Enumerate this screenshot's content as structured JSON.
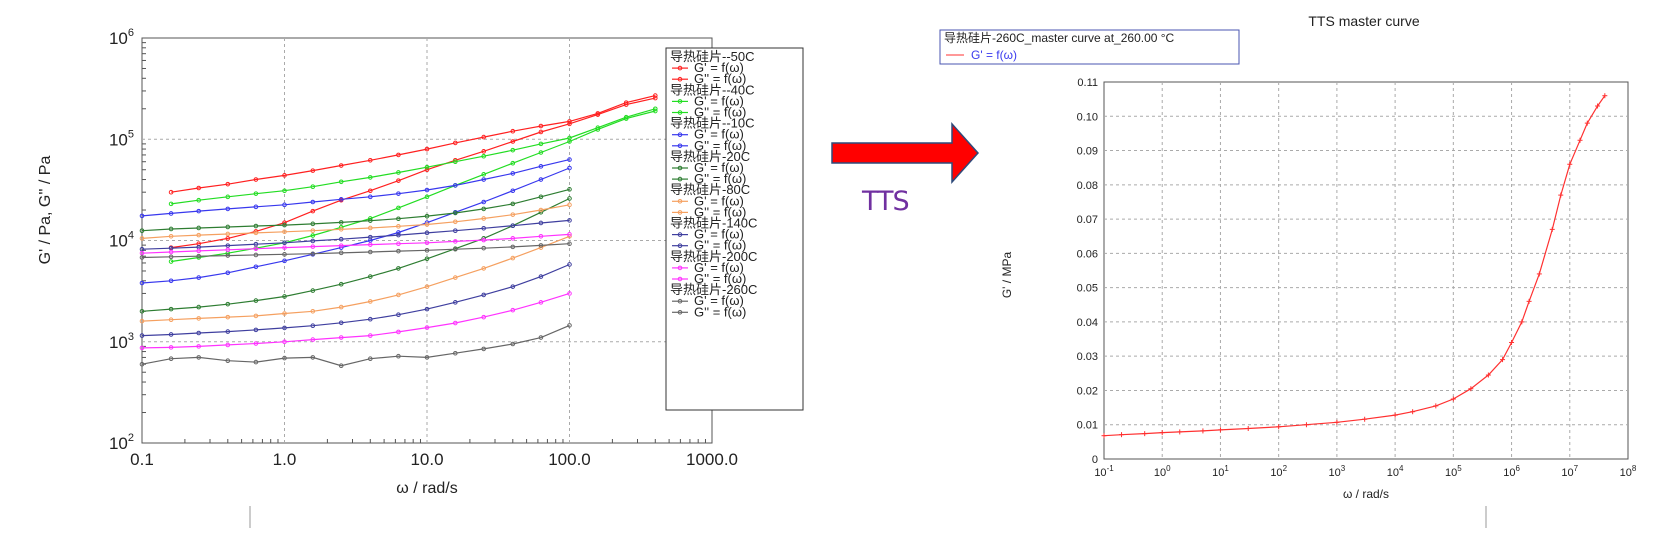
{
  "arrow_label": "TTS",
  "colors": {
    "arrow": "#ff0000",
    "arrow_border": "#2e4a7a",
    "arrow_label": "#7030a0"
  },
  "left_chart": {
    "type": "line",
    "xlabel": "ω / rad/s",
    "ylabel": "G' / Pa, G'' / Pa",
    "x_scale": "log",
    "y_scale": "log",
    "xlim": [
      0.1,
      1000
    ],
    "ylim": [
      100,
      1000000
    ],
    "x_ticks": [
      "0.1",
      "1.0",
      "10.0",
      "100.0",
      "1000.0"
    ],
    "y_tick_exponents": [
      "2",
      "3",
      "4",
      "5",
      "6"
    ],
    "y_tick_base": "10",
    "grid": true,
    "legend_placement": "right",
    "legend_groups": [
      {
        "title": "导热硅片--50C",
        "color": "#ff2020",
        "entries": [
          "G' = f(ω)",
          "G'' = f(ω)"
        ],
        "G_prime": {
          "x": [
            0.16,
            0.25,
            0.4,
            0.63,
            1,
            1.58,
            2.5,
            4,
            6.3,
            10,
            15.8,
            25,
            40,
            63,
            100,
            158,
            250,
            400
          ],
          "y": [
            8500,
            9300,
            10500,
            12300,
            15000,
            19500,
            25000,
            31000,
            39000,
            50000,
            62000,
            76000,
            95000,
            118000,
            142000,
            175000,
            220000,
            255000
          ]
        },
        "G_double_prime": {
          "x": [
            0.16,
            0.25,
            0.4,
            0.63,
            1,
            1.58,
            2.5,
            4,
            6.3,
            10,
            15.8,
            25,
            40,
            63,
            100,
            158,
            250,
            400
          ],
          "y": [
            30000,
            33000,
            36000,
            40000,
            44000,
            49000,
            55000,
            62000,
            70000,
            80000,
            92000,
            105000,
            120000,
            135000,
            150000,
            180000,
            230000,
            270000
          ]
        }
      },
      {
        "title": "导热硅片--40C",
        "color": "#22dd22",
        "entries": [
          "G' = f(ω)",
          "G'' = f(ω)"
        ],
        "G_prime": {
          "x": [
            0.16,
            0.25,
            0.4,
            0.63,
            1,
            1.58,
            2.5,
            4,
            6.3,
            10,
            15.8,
            25,
            40,
            63,
            100,
            158,
            250,
            400
          ],
          "y": [
            6200,
            6800,
            7500,
            8400,
            9500,
            11200,
            13500,
            16500,
            21000,
            27000,
            35000,
            45000,
            58000,
            74000,
            95000,
            125000,
            160000,
            190000
          ]
        },
        "G_double_prime": {
          "x": [
            0.16,
            0.25,
            0.4,
            0.63,
            1,
            1.58,
            2.5,
            4,
            6.3,
            10,
            15.8,
            25,
            40,
            63,
            100,
            158,
            250,
            400
          ],
          "y": [
            23000,
            25000,
            27000,
            29000,
            31000,
            34000,
            38000,
            42000,
            47000,
            53000,
            60000,
            68000,
            78000,
            90000,
            103000,
            130000,
            165000,
            200000
          ]
        }
      },
      {
        "title": "导热硅片--10C",
        "color": "#3838ee",
        "entries": [
          "G' = f(ω)",
          "G'' = f(ω)"
        ],
        "G_prime": {
          "x": [
            0.1,
            0.16,
            0.25,
            0.4,
            0.63,
            1,
            1.58,
            2.5,
            4,
            6.3,
            10,
            15.8,
            25,
            40,
            63,
            100
          ],
          "y": [
            3800,
            4000,
            4300,
            4800,
            5500,
            6300,
            7300,
            8500,
            10000,
            12000,
            15000,
            19000,
            24000,
            31000,
            40000,
            52000
          ]
        },
        "G_double_prime": {
          "x": [
            0.1,
            0.16,
            0.25,
            0.4,
            0.63,
            1,
            1.58,
            2.5,
            4,
            6.3,
            10,
            15.8,
            25,
            40,
            63,
            100
          ],
          "y": [
            17500,
            18500,
            19500,
            20500,
            21500,
            22500,
            24000,
            25500,
            27000,
            29000,
            31500,
            35000,
            40000,
            46000,
            54000,
            63000
          ]
        }
      },
      {
        "title": "导热硅片-20C",
        "color": "#2e7d32",
        "entries": [
          "G' = f(ω)",
          "G'' = f(ω)"
        ],
        "G_prime": {
          "x": [
            0.1,
            0.16,
            0.25,
            0.4,
            0.63,
            1,
            1.58,
            2.5,
            4,
            6.3,
            10,
            15.8,
            25,
            40,
            63,
            100
          ],
          "y": [
            2000,
            2100,
            2200,
            2350,
            2550,
            2800,
            3200,
            3700,
            4400,
            5300,
            6600,
            8300,
            10500,
            14000,
            19000,
            26000
          ]
        },
        "G_double_prime": {
          "x": [
            0.1,
            0.16,
            0.25,
            0.4,
            0.63,
            1,
            1.58,
            2.5,
            4,
            6.3,
            10,
            15.8,
            25,
            40,
            63,
            100
          ],
          "y": [
            12500,
            13000,
            13300,
            13600,
            13900,
            14200,
            14600,
            15100,
            15700,
            16400,
            17400,
            18700,
            20500,
            23000,
            27000,
            32000
          ]
        }
      },
      {
        "title": "导热硅片-80C",
        "color": "#f5a060",
        "entries": [
          "G' = f(ω)",
          "G'' = f(ω)"
        ],
        "G_prime": {
          "x": [
            0.1,
            0.16,
            0.25,
            0.4,
            0.63,
            1,
            1.58,
            2.5,
            4,
            6.3,
            10,
            15.8,
            25,
            40,
            63,
            100
          ],
          "y": [
            1600,
            1650,
            1700,
            1750,
            1800,
            1900,
            2000,
            2200,
            2500,
            2900,
            3500,
            4300,
            5300,
            6700,
            8500,
            11000
          ]
        },
        "G_double_prime": {
          "x": [
            0.1,
            0.16,
            0.25,
            0.4,
            0.63,
            1,
            1.58,
            2.5,
            4,
            6.3,
            10,
            15.8,
            25,
            40,
            63,
            100
          ],
          "y": [
            10500,
            11000,
            11300,
            11600,
            11900,
            12200,
            12500,
            12900,
            13300,
            13800,
            14400,
            15300,
            16500,
            18000,
            20000,
            22500
          ]
        }
      },
      {
        "title": "导热硅片-140C",
        "color": "#3f3f9f",
        "entries": [
          "G' = f(ω)",
          "G'' = f(ω)"
        ],
        "G_prime": {
          "x": [
            0.1,
            0.16,
            0.25,
            0.4,
            0.63,
            1,
            1.58,
            2.5,
            4,
            6.3,
            10,
            15.8,
            25,
            40,
            63,
            100
          ],
          "y": [
            1150,
            1180,
            1220,
            1260,
            1310,
            1370,
            1440,
            1540,
            1670,
            1850,
            2100,
            2450,
            2900,
            3500,
            4400,
            5800
          ]
        },
        "G_double_prime": {
          "x": [
            0.1,
            0.16,
            0.25,
            0.4,
            0.63,
            1,
            1.58,
            2.5,
            4,
            6.3,
            10,
            15.8,
            25,
            40,
            63,
            100
          ],
          "y": [
            8200,
            8400,
            8600,
            8900,
            9200,
            9500,
            9900,
            10300,
            10800,
            11300,
            11900,
            12500,
            13200,
            14000,
            14900,
            15800
          ]
        }
      },
      {
        "title": "导热硅片-200C",
        "color": "#ff33ff",
        "entries": [
          "G' = f(ω)",
          "G'' = f(ω)"
        ],
        "G_prime": {
          "x": [
            0.1,
            0.16,
            0.25,
            0.4,
            0.63,
            1,
            1.58,
            2.5,
            4,
            6.3,
            10,
            15.8,
            25,
            40,
            63,
            100
          ],
          "y": [
            870,
            880,
            900,
            930,
            960,
            1000,
            1050,
            1100,
            1150,
            1250,
            1380,
            1530,
            1750,
            2050,
            2450,
            3000
          ]
        },
        "G_double_prime": {
          "x": [
            0.1,
            0.16,
            0.25,
            0.4,
            0.63,
            1,
            1.58,
            2.5,
            4,
            6.3,
            10,
            15.8,
            25,
            40,
            63,
            100
          ],
          "y": [
            7500,
            7700,
            7900,
            8100,
            8300,
            8500,
            8700,
            8900,
            9100,
            9300,
            9500,
            9800,
            10100,
            10500,
            11000,
            11500
          ]
        }
      },
      {
        "title": "导热硅片-260C",
        "color": "#666666",
        "entries": [
          "G' = f(ω)",
          "G'' = f(ω)"
        ],
        "G_prime": {
          "x": [
            0.1,
            0.16,
            0.25,
            0.4,
            0.63,
            1,
            1.58,
            2.5,
            4,
            6.3,
            10,
            15.8,
            25,
            40,
            63,
            100
          ],
          "y": [
            600,
            680,
            700,
            650,
            630,
            690,
            700,
            580,
            680,
            720,
            700,
            770,
            850,
            950,
            1100,
            1450
          ]
        },
        "G_double_prime": {
          "x": [
            0.1,
            0.16,
            0.25,
            0.4,
            0.63,
            1,
            1.58,
            2.5,
            4,
            6.3,
            10,
            15.8,
            25,
            40,
            63,
            100
          ],
          "y": [
            6800,
            6900,
            7000,
            7100,
            7200,
            7300,
            7400,
            7550,
            7700,
            7850,
            8000,
            8200,
            8400,
            8650,
            8950,
            9300
          ]
        }
      }
    ]
  },
  "right_chart": {
    "type": "line",
    "title": "TTS master curve",
    "legend_title": "导热硅片-260C_master curve at_260.00 °C",
    "legend_entry": "G' = f(ω)",
    "xlabel": "ω / rad/s",
    "ylabel": "G' / MPa",
    "x_scale": "log",
    "xlim": [
      0.1,
      100000000
    ],
    "ylim": [
      0,
      0.11
    ],
    "x_tick_base": "10",
    "x_tick_exponents": [
      "-1",
      "0",
      "1",
      "2",
      "3",
      "4",
      "5",
      "6",
      "7",
      "8"
    ],
    "y_ticks": [
      "0",
      "0.01",
      "0.02",
      "0.03",
      "0.04",
      "0.05",
      "0.06",
      "0.07",
      "0.08",
      "0.09",
      "0.10",
      "0.11"
    ],
    "grid": true,
    "color": "#ff3030",
    "series": [
      {
        "x": [
          0.1,
          0.2,
          0.5,
          1,
          2,
          5,
          10,
          30,
          100,
          300,
          1000,
          3000,
          10000,
          20000,
          50000,
          100000,
          200000,
          400000,
          700000,
          1000000,
          1500000,
          2000000,
          3000000,
          5000000,
          7000000,
          10000000,
          15000000,
          20000000,
          30000000,
          40000000
        ],
        "y": [
          0.0068,
          0.0071,
          0.0074,
          0.0077,
          0.0079,
          0.0082,
          0.0085,
          0.0089,
          0.0094,
          0.01,
          0.0107,
          0.0116,
          0.0128,
          0.0138,
          0.0155,
          0.0175,
          0.0205,
          0.0245,
          0.029,
          0.034,
          0.04,
          0.046,
          0.054,
          0.067,
          0.077,
          0.086,
          0.093,
          0.098,
          0.103,
          0.106
        ]
      }
    ]
  }
}
